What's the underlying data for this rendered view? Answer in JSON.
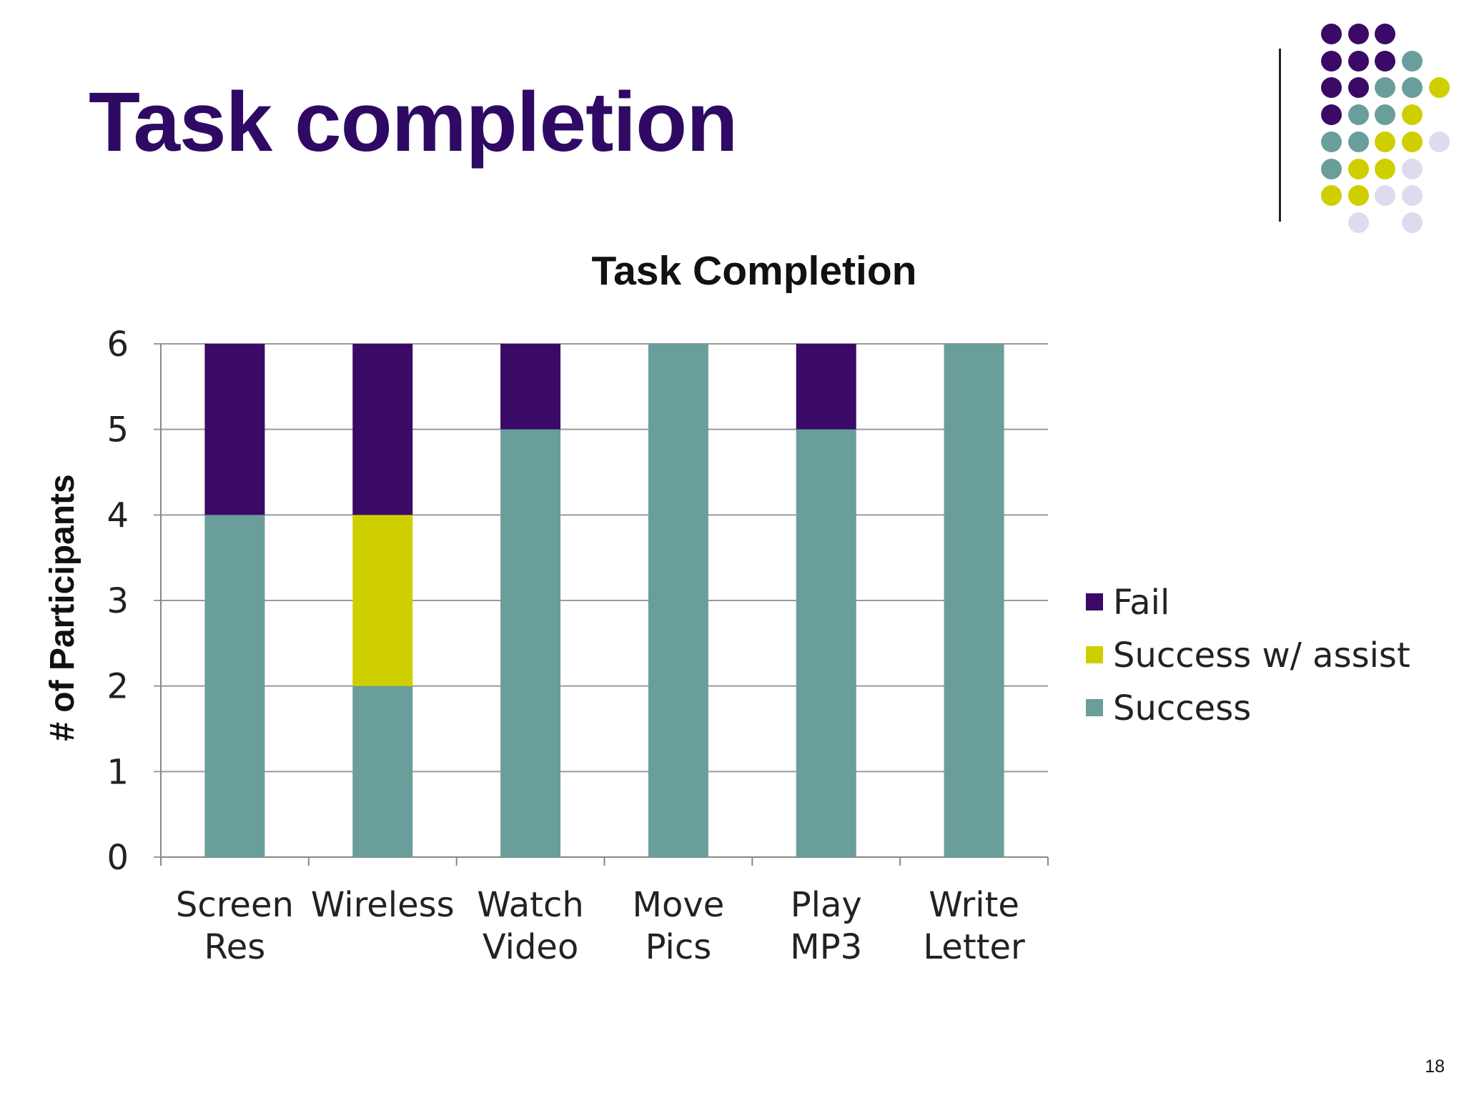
{
  "slide": {
    "title": "Task completion",
    "page_number": "18"
  },
  "decoration": {
    "colors": {
      "purple": "#3a0a66",
      "teal": "#6a9e9b",
      "yellow": "#cfcf00",
      "lavender": "#dcdcee"
    },
    "dot_rows": [
      [
        "purple",
        "purple",
        "purple",
        null,
        null
      ],
      [
        "purple",
        "purple",
        "purple",
        "teal",
        null
      ],
      [
        "purple",
        "purple",
        "teal",
        "teal",
        "yellow"
      ],
      [
        "purple",
        "teal",
        "teal",
        "yellow",
        null
      ],
      [
        "teal",
        "teal",
        "yellow",
        "yellow",
        "lavender"
      ],
      [
        "teal",
        "yellow",
        "yellow",
        "lavender",
        null
      ],
      [
        "yellow",
        "yellow",
        "lavender",
        "lavender",
        null
      ],
      [
        null,
        "lavender",
        null,
        "lavender",
        null
      ]
    ]
  },
  "chart_data": {
    "type": "bar",
    "stacked": true,
    "title": "Task Completion",
    "xlabel": "",
    "ylabel": "# of Participants",
    "ylim": [
      0,
      6
    ],
    "yticks": [
      "0",
      "1",
      "2",
      "3",
      "4",
      "5",
      "6"
    ],
    "categories": [
      [
        "Screen",
        "Res"
      ],
      [
        "Wireless"
      ],
      [
        "Watch",
        "Video"
      ],
      [
        "Move",
        "Pics"
      ],
      [
        "Play",
        "MP3"
      ],
      [
        "Write",
        "Letter"
      ]
    ],
    "series": [
      {
        "name": "Success",
        "color": "#6a9e9b",
        "values": [
          4,
          2,
          5,
          6,
          5,
          6
        ]
      },
      {
        "name": "Success w/ assist",
        "color": "#cfcf00",
        "values": [
          0,
          2,
          0,
          0,
          0,
          0
        ]
      },
      {
        "name": "Fail",
        "color": "#3a0a66",
        "values": [
          2,
          2,
          1,
          0,
          1,
          0
        ]
      }
    ],
    "legend": {
      "position": "right",
      "order": [
        "Fail",
        "Success w/ assist",
        "Success"
      ]
    },
    "grid": true
  }
}
